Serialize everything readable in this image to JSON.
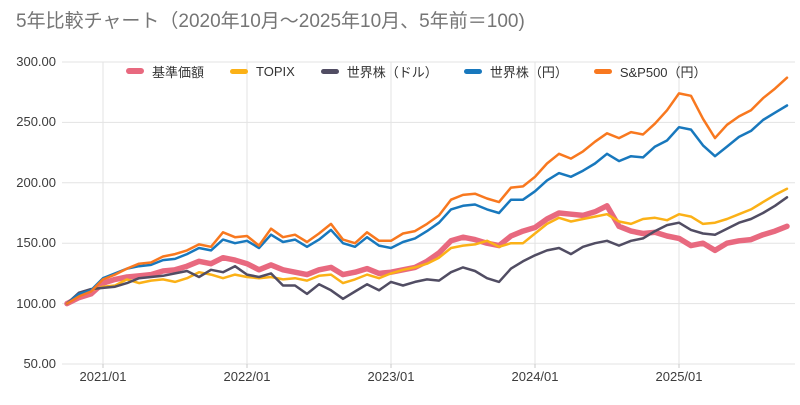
{
  "title": "5年比較チャート（2020年10月〜2025年10月、5年前＝100)",
  "chart_data": {
    "type": "line",
    "title": "5年比較チャート（2020年10月〜2025年10月、5年前＝100)",
    "x_unit": "month",
    "x_start_label": "2020/10",
    "x_end_label": "2025/10",
    "x_months_total": 60,
    "ylim": [
      50,
      300
    ],
    "grid": true,
    "legend_position": "top",
    "y_axis_ticks": [
      {
        "label": "300.00",
        "value": 300
      },
      {
        "label": "250.00",
        "value": 250
      },
      {
        "label": "200.00",
        "value": 200
      },
      {
        "label": "150.00",
        "value": 150
      },
      {
        "label": "100.00",
        "value": 100
      },
      {
        "label": "50.00",
        "value": 50
      }
    ],
    "x_axis_ticks": [
      {
        "label": "2021/01",
        "month": 3
      },
      {
        "label": "2022/01",
        "month": 15
      },
      {
        "label": "2023/01",
        "month": 27
      },
      {
        "label": "2024/01",
        "month": 39
      },
      {
        "label": "2025/01",
        "month": 51
      }
    ],
    "grid_color": "#e3e3e3",
    "series": [
      {
        "name": "基準価額",
        "color": "#e8697f",
        "width": 5.5,
        "values": [
          100,
          105,
          108,
          117,
          120,
          122,
          123,
          124,
          127,
          128,
          131,
          135,
          133,
          138,
          136,
          133,
          128,
          132,
          128,
          126,
          124,
          128,
          130,
          124,
          126,
          129,
          125,
          126,
          128,
          130,
          135,
          142,
          152,
          155,
          153,
          150,
          148,
          156,
          160,
          163,
          170,
          175,
          174,
          173,
          176,
          181,
          164,
          160,
          158,
          159,
          156,
          154,
          148,
          150,
          144,
          150,
          152,
          153,
          157,
          160,
          164
        ]
      },
      {
        "name": "TOPIX",
        "color": "#fbb117",
        "width": 2.5,
        "values": [
          100,
          108,
          111,
          114,
          115,
          120,
          117,
          119,
          120,
          118,
          121,
          126,
          124,
          121,
          124,
          122,
          121,
          122,
          120,
          121,
          119,
          123,
          124,
          117,
          120,
          124,
          121,
          125,
          128,
          130,
          133,
          138,
          146,
          148,
          149,
          152,
          147,
          150,
          150,
          158,
          166,
          171,
          168,
          170,
          172,
          174,
          168,
          166,
          170,
          171,
          169,
          174,
          172,
          166,
          167,
          170,
          174,
          178,
          184,
          190,
          195
        ]
      },
      {
        "name": "世界株（ドル）",
        "color": "#514d63",
        "width": 2.5,
        "values": [
          100,
          109,
          112,
          113,
          114,
          117,
          121,
          122,
          123,
          125,
          127,
          122,
          128,
          126,
          131,
          124,
          122,
          125,
          115,
          115,
          108,
          116,
          111,
          104,
          110,
          116,
          111,
          118,
          115,
          118,
          120,
          119,
          126,
          130,
          127,
          121,
          118,
          129,
          135,
          140,
          144,
          146,
          141,
          147,
          150,
          152,
          148,
          152,
          154,
          160,
          165,
          167,
          161,
          158,
          157,
          162,
          167,
          170,
          175,
          181,
          188
        ]
      },
      {
        "name": "世界株（円）",
        "color": "#1878bd",
        "width": 2.5,
        "values": [
          100,
          108,
          111,
          121,
          125,
          129,
          131,
          132,
          136,
          137,
          141,
          146,
          144,
          153,
          150,
          152,
          146,
          157,
          151,
          153,
          147,
          153,
          161,
          150,
          147,
          155,
          148,
          146,
          151,
          154,
          160,
          167,
          178,
          181,
          182,
          178,
          175,
          186,
          186,
          193,
          202,
          208,
          205,
          210,
          216,
          224,
          218,
          222,
          221,
          230,
          235,
          246,
          244,
          231,
          222,
          230,
          238,
          243,
          252,
          258,
          264
        ]
      },
      {
        "name": "S&P500（円）",
        "color": "#f8781f",
        "width": 2.5,
        "values": [
          100,
          106,
          110,
          120,
          124,
          129,
          133,
          134,
          139,
          141,
          144,
          149,
          147,
          159,
          155,
          156,
          148,
          162,
          155,
          157,
          151,
          158,
          166,
          153,
          150,
          159,
          152,
          152,
          158,
          160,
          166,
          173,
          186,
          190,
          191,
          187,
          184,
          196,
          197,
          205,
          216,
          224,
          220,
          226,
          234,
          241,
          237,
          242,
          240,
          249,
          260,
          274,
          272,
          253,
          237,
          248,
          255,
          260,
          270,
          278,
          287
        ]
      }
    ]
  }
}
